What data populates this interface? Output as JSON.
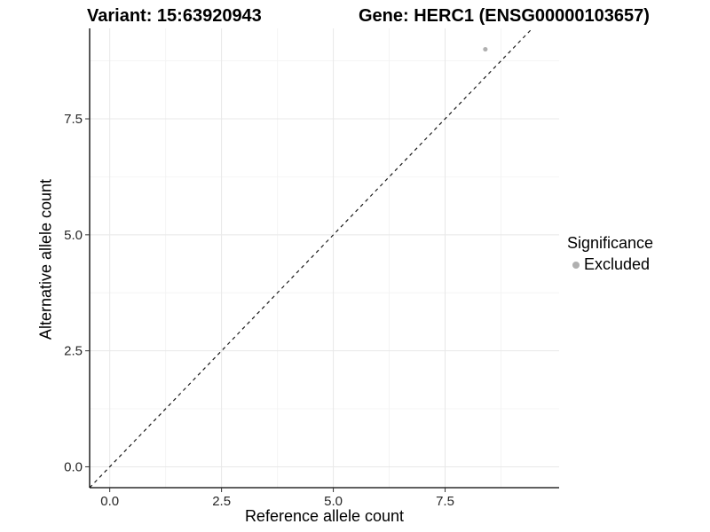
{
  "chart_data": {
    "type": "scatter",
    "title_left": "Variant: 15:63920943",
    "title_right": "Gene: HERC1 (ENSG00000103657)",
    "xlabel": "Reference allele count",
    "ylabel": "Alternative allele count",
    "x_tick_labels": [
      "0.0",
      "2.5",
      "5.0",
      "7.5"
    ],
    "x_tick_values": [
      0,
      2.5,
      5,
      7.5
    ],
    "y_tick_labels": [
      "0.0",
      "2.5",
      "5.0",
      "7.5"
    ],
    "y_tick_values": [
      0,
      2.5,
      5,
      7.5
    ],
    "xlim": [
      -0.45,
      10.05
    ],
    "ylim": [
      -0.45,
      9.45
    ],
    "grid": true,
    "points": [
      {
        "x": 8.4,
        "y": 9.0,
        "series": "Excluded"
      }
    ],
    "identity_line": {
      "slope": 1,
      "intercept": 0,
      "style": "dashed"
    },
    "legend": {
      "position": "right",
      "title": "Significance",
      "items": [
        {
          "label": "Excluded",
          "color": "#b0b0b0"
        }
      ]
    },
    "colors": {
      "point": "#b0b0b0",
      "grid_major": "#e8e8e8",
      "grid_minor": "#f4f4f4",
      "axis_line": "#000000",
      "tick_label": "#262626",
      "identity_line": "#1a1a1a"
    }
  }
}
